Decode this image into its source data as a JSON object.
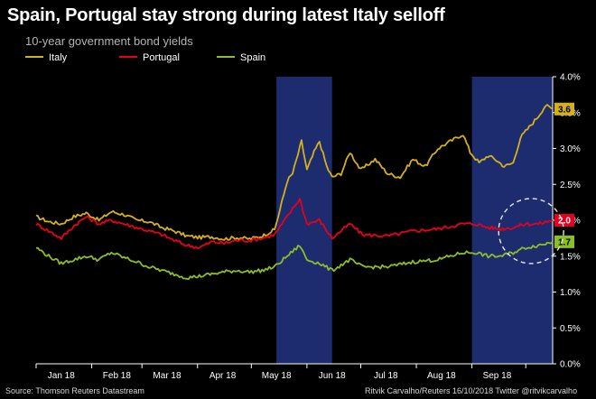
{
  "header": {
    "title": "Spain, Portugal stay strong during latest Italy selloff",
    "subtitle": "10-year government bond yields"
  },
  "footer": {
    "source": "Source: Thomson Reuters Datastream",
    "credit": "Ritvik Carvalho/Reuters 16/10/2018 Twitter @ritvikcarvalho"
  },
  "chart_data": {
    "type": "line",
    "title": "Spain, Portugal stay strong during latest Italy selloff",
    "subtitle": "10-year government bond yields",
    "xlabel": "",
    "ylabel": "",
    "ylim": [
      0,
      4
    ],
    "y_ticks": [
      "0.0%",
      "0.5%",
      "1.0%",
      "1.5%",
      "2.0%",
      "2.5%",
      "3.0%",
      "3.5%",
      "4.0%"
    ],
    "x_ticks": [
      "Jan 18",
      "Feb 18",
      "Mar 18",
      "Apr 18",
      "May 18",
      "Jun 18",
      "Jul 18",
      "Aug 18",
      "Sep 18"
    ],
    "x_range": [
      "2018-01-01",
      "2018-10-16"
    ],
    "y_axis_position": "right",
    "grid": false,
    "legend_position": "top-left",
    "shaded_periods": [
      {
        "start": "2018-05-15",
        "end": "2018-06-15"
      },
      {
        "start": "2018-09-01",
        "end": "2018-10-16"
      }
    ],
    "highlight": {
      "type": "dashed-circle",
      "center_date": "2018-10-04",
      "center_value": 1.85
    },
    "series": [
      {
        "name": "Italy",
        "color": "#d4b020",
        "end_label": "3.6",
        "x": [
          "2018-01-01",
          "2018-01-08",
          "2018-01-15",
          "2018-01-22",
          "2018-01-29",
          "2018-02-05",
          "2018-02-12",
          "2018-02-19",
          "2018-02-26",
          "2018-03-05",
          "2018-03-12",
          "2018-03-19",
          "2018-03-26",
          "2018-04-02",
          "2018-04-09",
          "2018-04-16",
          "2018-04-23",
          "2018-04-30",
          "2018-05-07",
          "2018-05-14",
          "2018-05-17",
          "2018-05-21",
          "2018-05-24",
          "2018-05-29",
          "2018-06-01",
          "2018-06-05",
          "2018-06-08",
          "2018-06-12",
          "2018-06-15",
          "2018-06-20",
          "2018-06-25",
          "2018-07-01",
          "2018-07-09",
          "2018-07-16",
          "2018-07-23",
          "2018-07-30",
          "2018-08-06",
          "2018-08-13",
          "2018-08-20",
          "2018-08-27",
          "2018-08-31",
          "2018-09-05",
          "2018-09-10",
          "2018-09-14",
          "2018-09-19",
          "2018-09-24",
          "2018-09-28",
          "2018-10-03",
          "2018-10-08",
          "2018-10-12",
          "2018-10-16"
        ],
        "values": [
          2.05,
          1.98,
          1.95,
          2.05,
          2.1,
          2.0,
          2.12,
          2.08,
          2.0,
          1.98,
          1.9,
          1.85,
          1.78,
          1.76,
          1.77,
          1.74,
          1.76,
          1.74,
          1.78,
          1.87,
          2.15,
          2.55,
          2.65,
          3.1,
          2.7,
          2.95,
          3.1,
          2.75,
          2.6,
          2.65,
          2.95,
          2.7,
          2.85,
          2.65,
          2.6,
          2.85,
          2.75,
          3.0,
          3.1,
          3.2,
          2.95,
          2.8,
          2.9,
          2.85,
          2.75,
          2.8,
          3.15,
          3.3,
          3.45,
          3.6,
          3.55
        ]
      },
      {
        "name": "Portugal",
        "color": "#e6001e",
        "end_label": "2.0",
        "x": [
          "2018-01-01",
          "2018-01-08",
          "2018-01-15",
          "2018-01-22",
          "2018-01-29",
          "2018-02-05",
          "2018-02-12",
          "2018-02-19",
          "2018-02-26",
          "2018-03-05",
          "2018-03-12",
          "2018-03-19",
          "2018-03-26",
          "2018-04-02",
          "2018-04-09",
          "2018-04-16",
          "2018-04-23",
          "2018-04-30",
          "2018-05-07",
          "2018-05-14",
          "2018-05-21",
          "2018-05-28",
          "2018-06-01",
          "2018-06-08",
          "2018-06-15",
          "2018-06-25",
          "2018-07-02",
          "2018-07-16",
          "2018-07-30",
          "2018-08-13",
          "2018-08-27",
          "2018-09-03",
          "2018-09-10",
          "2018-09-17",
          "2018-09-24",
          "2018-10-01",
          "2018-10-08",
          "2018-10-16"
        ],
        "values": [
          1.95,
          1.85,
          1.75,
          1.92,
          2.05,
          1.95,
          2.0,
          1.95,
          1.9,
          1.85,
          1.8,
          1.72,
          1.65,
          1.62,
          1.7,
          1.68,
          1.72,
          1.72,
          1.75,
          1.8,
          2.05,
          2.3,
          1.95,
          2.0,
          1.75,
          1.95,
          1.8,
          1.78,
          1.85,
          1.88,
          1.95,
          1.95,
          1.9,
          1.88,
          1.9,
          1.95,
          1.95,
          2.0
        ]
      },
      {
        "name": "Spain",
        "color": "#8cbe28",
        "end_label": "1.7",
        "x": [
          "2018-01-01",
          "2018-01-08",
          "2018-01-15",
          "2018-01-22",
          "2018-01-29",
          "2018-02-05",
          "2018-02-12",
          "2018-02-19",
          "2018-02-26",
          "2018-03-05",
          "2018-03-12",
          "2018-03-19",
          "2018-03-26",
          "2018-04-02",
          "2018-04-09",
          "2018-04-16",
          "2018-04-23",
          "2018-04-30",
          "2018-05-07",
          "2018-05-14",
          "2018-05-21",
          "2018-05-28",
          "2018-06-01",
          "2018-06-08",
          "2018-06-15",
          "2018-06-25",
          "2018-07-02",
          "2018-07-16",
          "2018-07-30",
          "2018-08-13",
          "2018-08-27",
          "2018-09-03",
          "2018-09-10",
          "2018-09-17",
          "2018-09-24",
          "2018-10-01",
          "2018-10-08",
          "2018-10-16"
        ],
        "values": [
          1.62,
          1.5,
          1.4,
          1.45,
          1.5,
          1.45,
          1.55,
          1.48,
          1.42,
          1.35,
          1.3,
          1.25,
          1.2,
          1.22,
          1.25,
          1.28,
          1.3,
          1.28,
          1.3,
          1.35,
          1.5,
          1.65,
          1.45,
          1.4,
          1.3,
          1.45,
          1.35,
          1.35,
          1.42,
          1.45,
          1.55,
          1.55,
          1.5,
          1.5,
          1.55,
          1.62,
          1.65,
          1.7
        ]
      }
    ]
  }
}
